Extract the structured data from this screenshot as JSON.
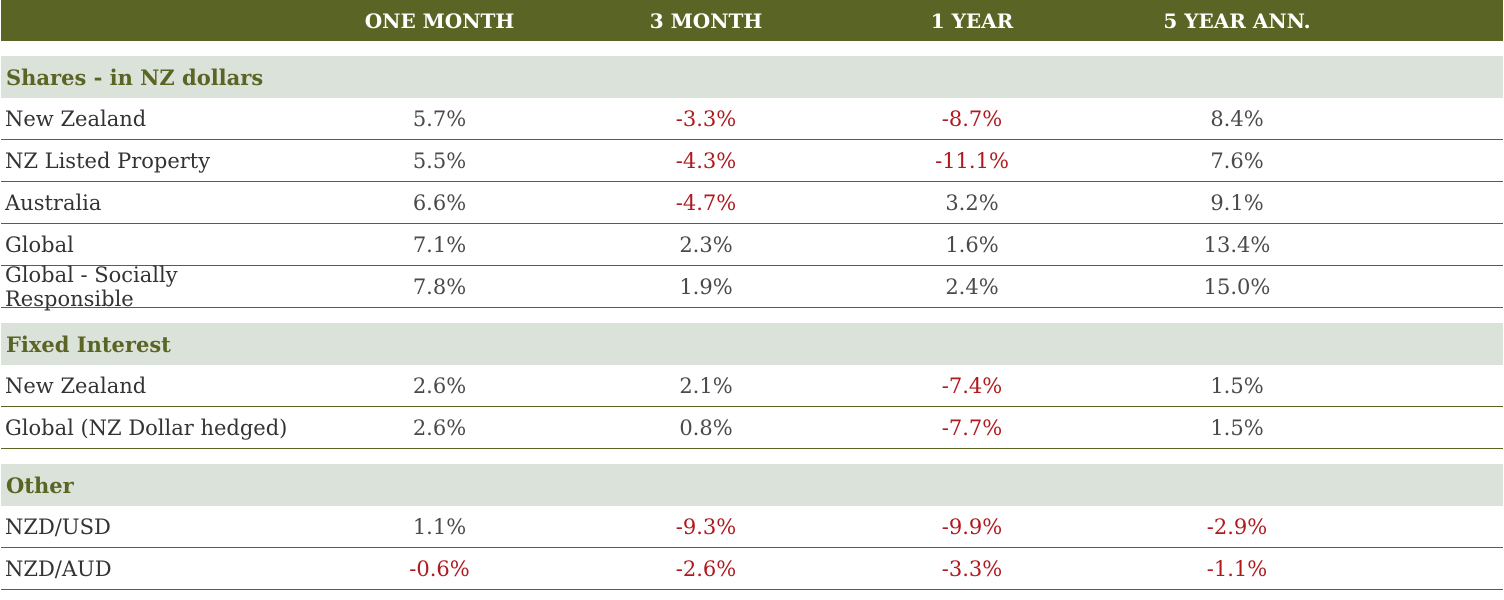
{
  "header": {
    "columns": [
      "",
      "ONE MONTH",
      "3 MONTH",
      "1 YEAR",
      "5 YEAR ANN."
    ]
  },
  "sections": [
    {
      "title": "Shares - in NZ dollars",
      "rows": [
        {
          "label": "New Zealand",
          "values": [
            "5.7%",
            "-3.3%",
            "-8.7%",
            "8.4%"
          ]
        },
        {
          "label": "NZ Listed Property",
          "values": [
            "5.5%",
            "-4.3%",
            "-11.1%",
            "7.6%"
          ]
        },
        {
          "label": "Australia",
          "values": [
            "6.6%",
            "-4.7%",
            "3.2%",
            "9.1%"
          ]
        },
        {
          "label": "Global",
          "values": [
            "7.1%",
            "2.3%",
            "1.6%",
            "13.4%"
          ]
        },
        {
          "label": "Global - Socially Responsible",
          "values": [
            "7.8%",
            "1.9%",
            "2.4%",
            "15.0%"
          ]
        }
      ]
    },
    {
      "title": "Fixed Interest",
      "rows": [
        {
          "label": "New Zealand",
          "values": [
            "2.6%",
            "2.1%",
            "-7.4%",
            "1.5%"
          ]
        },
        {
          "label": "Global (NZ Dollar hedged)",
          "values": [
            "2.6%",
            "0.8%",
            "-7.7%",
            "1.5%"
          ]
        }
      ]
    },
    {
      "title": "Other",
      "rows": [
        {
          "label": "NZD/USD",
          "values": [
            "1.1%",
            "-9.3%",
            "-9.9%",
            "-2.9%"
          ]
        },
        {
          "label": "NZD/AUD",
          "values": [
            "-0.6%",
            "-2.6%",
            "-3.3%",
            "-1.1%"
          ]
        }
      ]
    }
  ],
  "colors": {
    "header_bg": "#5a6424",
    "section_bg": "#dbe2d9",
    "negative": "#b0191e"
  }
}
